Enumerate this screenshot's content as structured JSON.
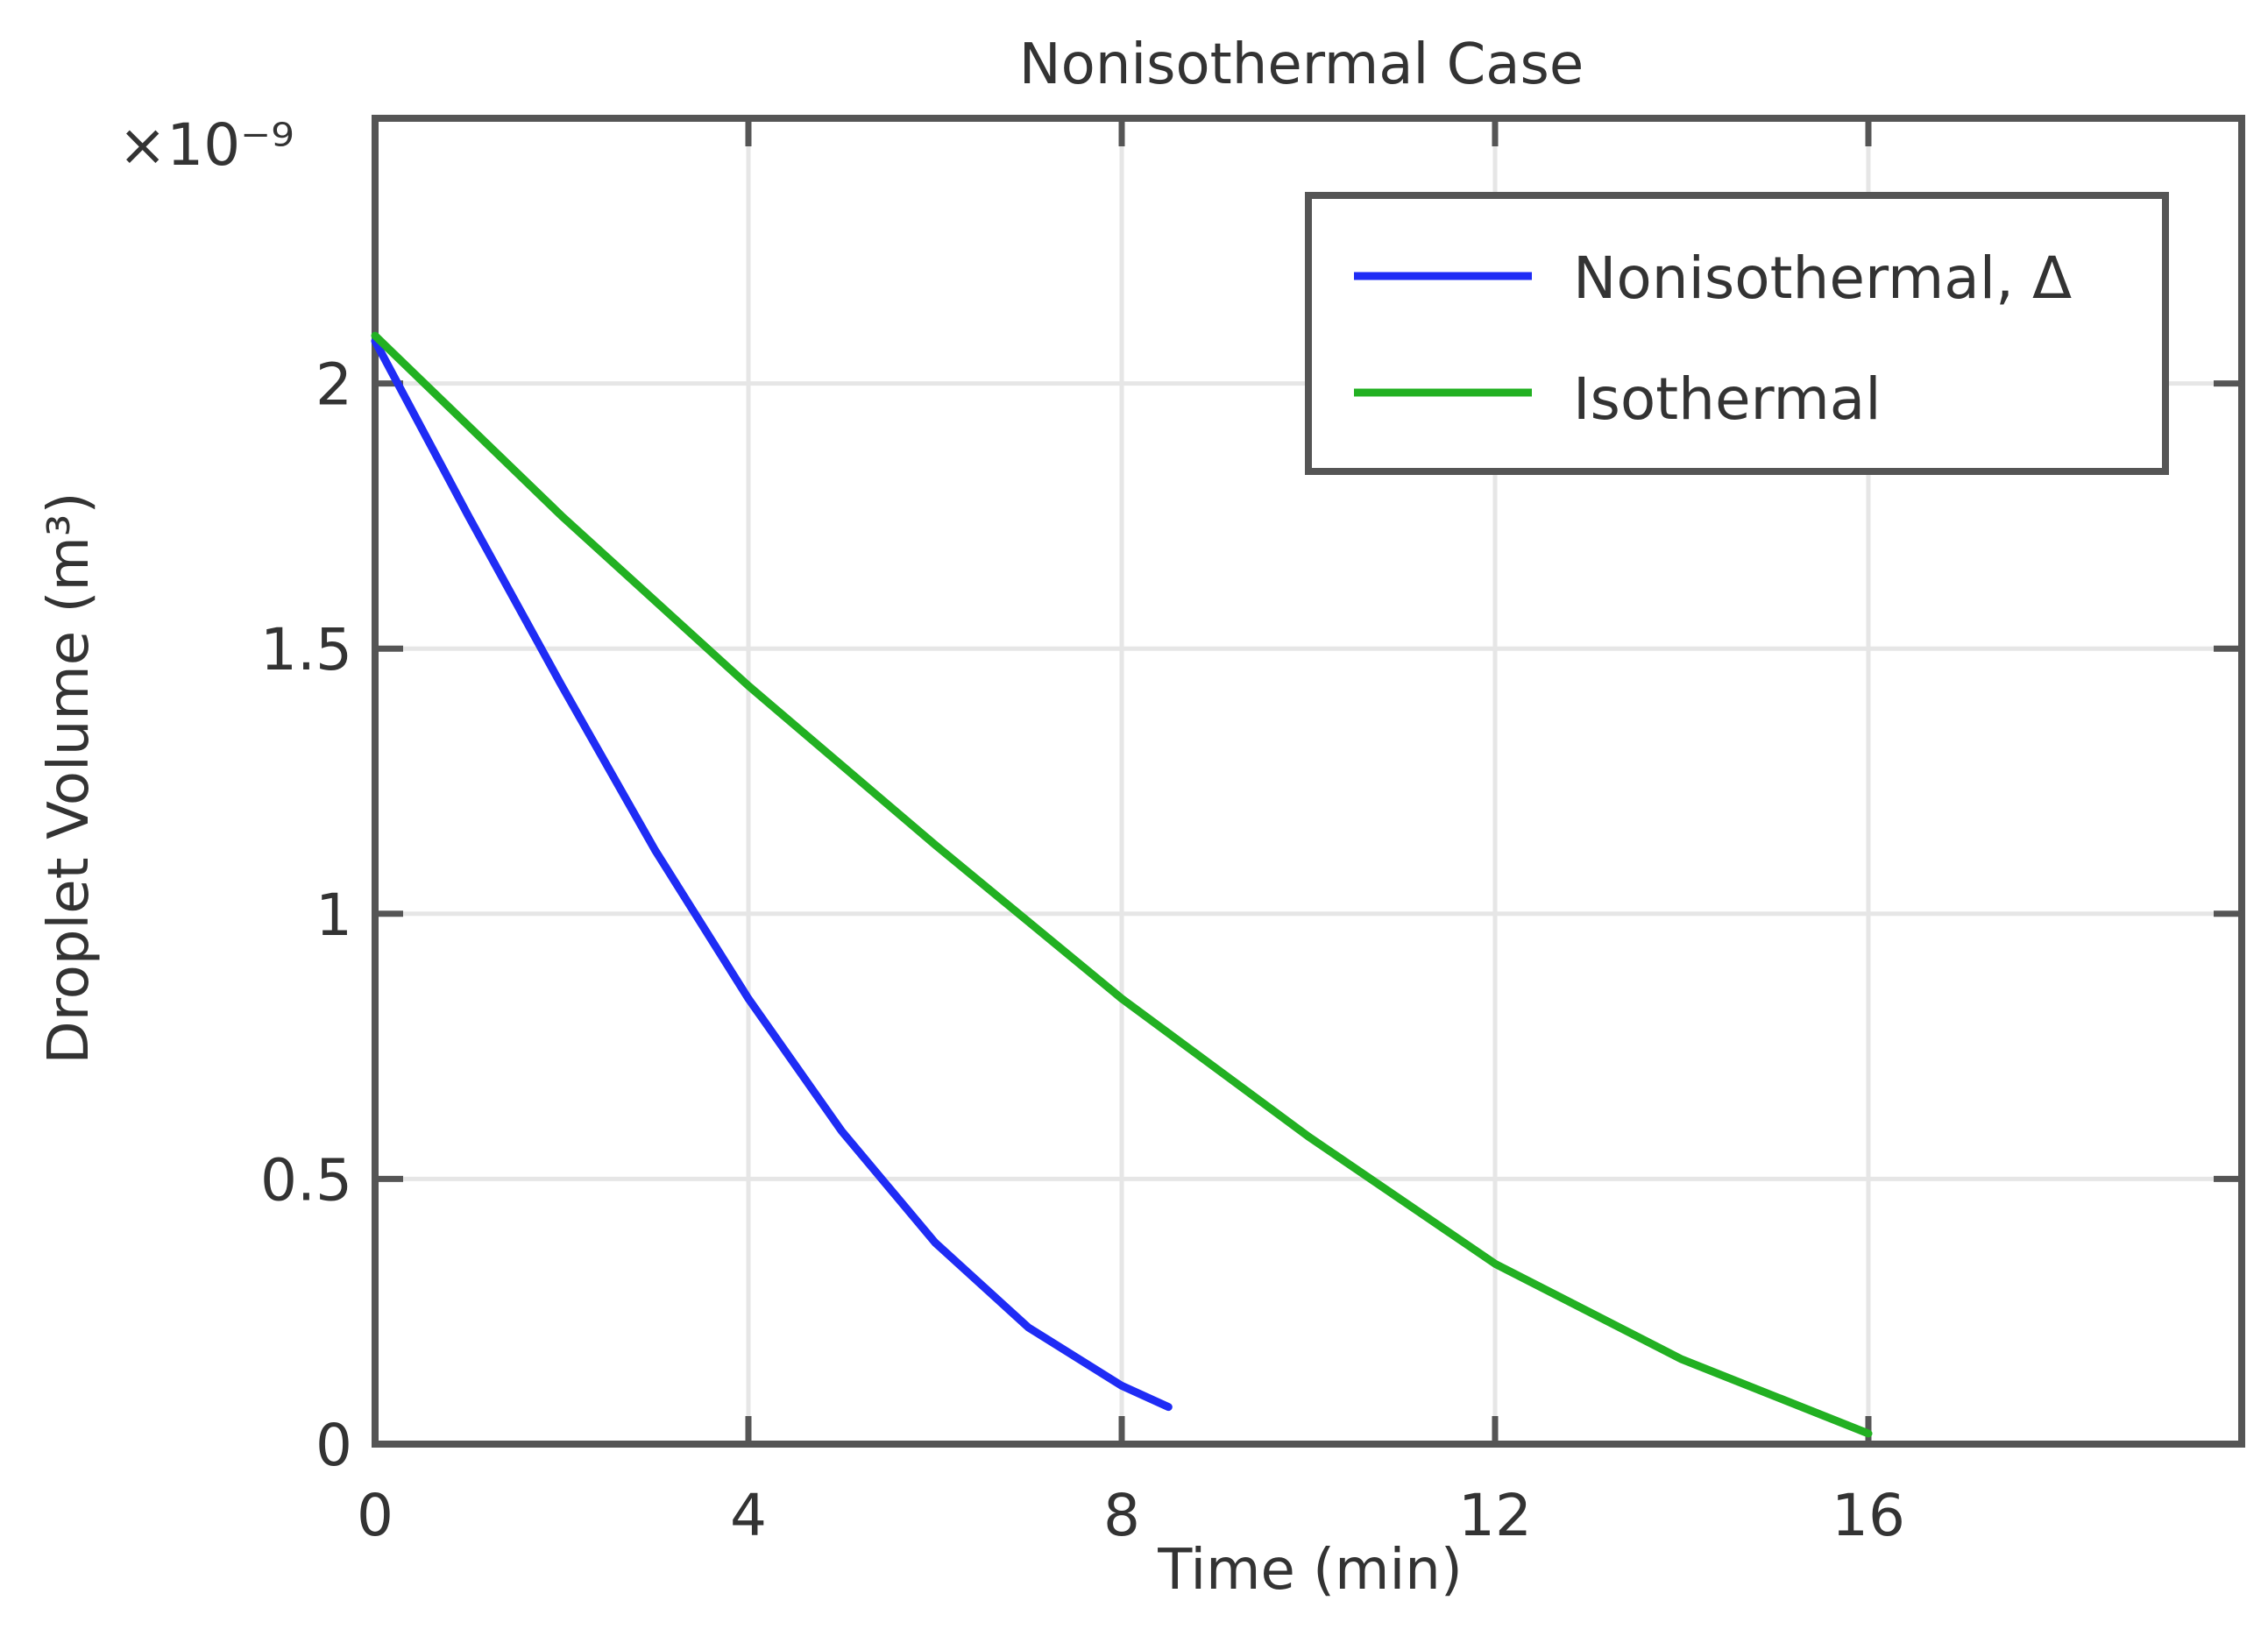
{
  "chart_data": {
    "type": "line",
    "title": "Nonisothermal Case",
    "xlabel": "Time (min)",
    "ylabel": "Droplet Volume (m³)",
    "y_multiplier_label": "×10⁻⁹",
    "xlim": [
      0,
      20
    ],
    "ylim": [
      0,
      2.5
    ],
    "x_ticks": [
      0,
      4,
      8,
      12,
      16
    ],
    "x_tick_labels": [
      "0",
      "4",
      "8",
      "12",
      "16"
    ],
    "y_ticks": [
      0,
      0.5,
      1,
      1.5,
      2
    ],
    "y_tick_labels": [
      "0",
      "0.5",
      "1",
      "1.5",
      "2"
    ],
    "grid": true,
    "legend_position": "top-right",
    "series": [
      {
        "name": "Nonisothermal, Δ",
        "color": "#1f2cf5",
        "x": [
          0,
          1,
          2,
          3,
          4,
          5,
          6,
          7,
          8,
          8.5
        ],
        "y": [
          2.08,
          1.75,
          1.43,
          1.12,
          0.84,
          0.59,
          0.38,
          0.22,
          0.11,
          0.07
        ]
      },
      {
        "name": "Isothermal",
        "color": "#22b022",
        "x": [
          0,
          2,
          4,
          6,
          8,
          10,
          12,
          14,
          16
        ],
        "y": [
          2.09,
          1.75,
          1.43,
          1.13,
          0.84,
          0.58,
          0.34,
          0.16,
          0.02
        ]
      }
    ]
  }
}
